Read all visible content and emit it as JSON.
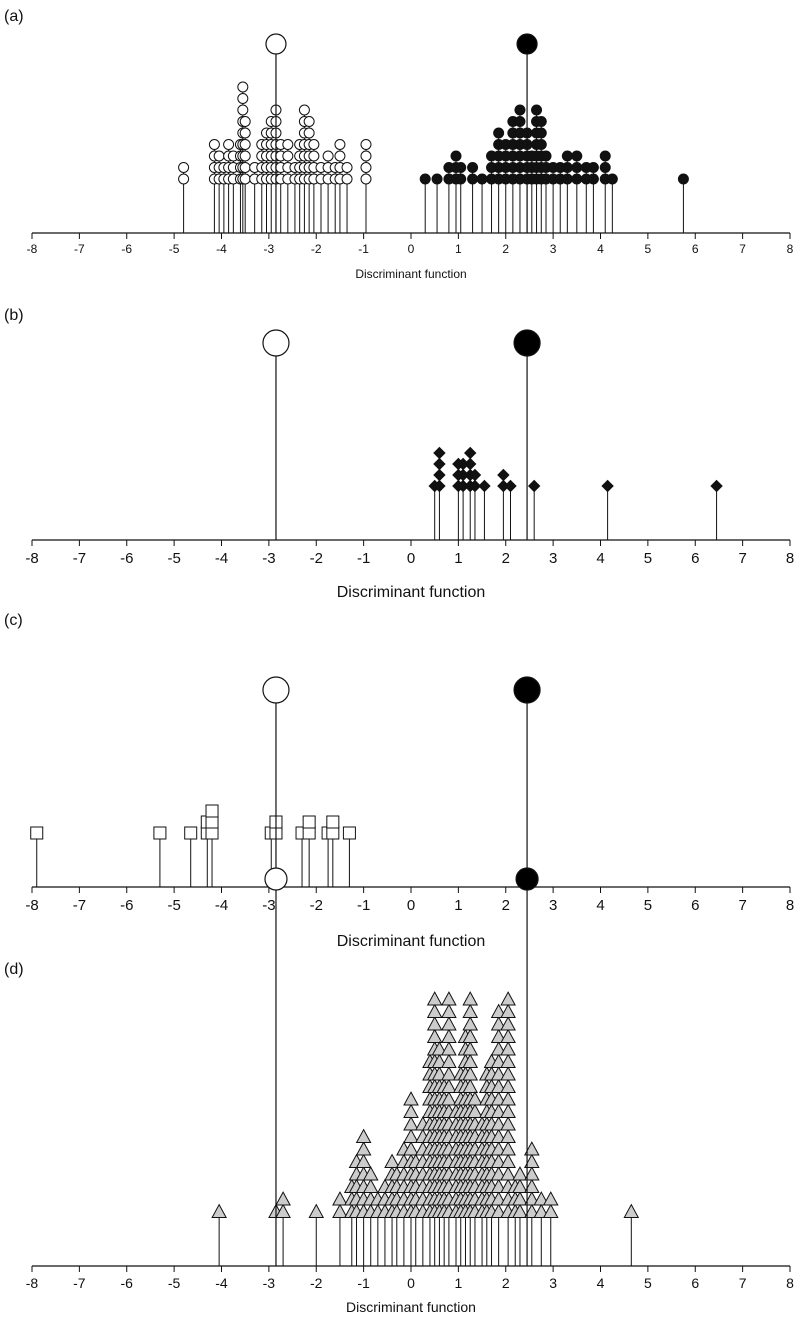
{
  "chart_data": [
    {
      "type": "scatter",
      "panel_label": "(a)",
      "xlabel": "Discriminant function",
      "xlim": [
        -8,
        8
      ],
      "x_ticks": [
        "-8",
        "-7",
        "-6",
        "-5",
        "-4",
        "-3",
        "-2",
        "-1",
        "0",
        "1",
        "2",
        "3",
        "4",
        "5",
        "6",
        "7",
        "8"
      ],
      "grid": false,
      "centroids": [
        {
          "x": -2.85,
          "fill": "#ffffff"
        },
        {
          "x": 2.45,
          "fill": "#000000"
        }
      ],
      "series": [
        {
          "marker": "circle",
          "fill": "#ffffff",
          "points": [
            {
              "x": -4.8,
              "count": 2
            },
            {
              "x": -4.15,
              "count": 4
            },
            {
              "x": -4.05,
              "count": 3
            },
            {
              "x": -3.95,
              "count": 2
            },
            {
              "x": -3.85,
              "count": 4
            },
            {
              "x": -3.75,
              "count": 3
            },
            {
              "x": -3.6,
              "count": 4
            },
            {
              "x": -3.55,
              "count": 9
            },
            {
              "x": -3.5,
              "count": 6
            },
            {
              "x": -3.3,
              "count": 2
            },
            {
              "x": -3.15,
              "count": 4
            },
            {
              "x": -3.05,
              "count": 5
            },
            {
              "x": -2.95,
              "count": 6
            },
            {
              "x": -2.85,
              "count": 7
            },
            {
              "x": -2.75,
              "count": 4
            },
            {
              "x": -2.6,
              "count": 4
            },
            {
              "x": -2.45,
              "count": 2
            },
            {
              "x": -2.35,
              "count": 4
            },
            {
              "x": -2.25,
              "count": 7
            },
            {
              "x": -2.15,
              "count": 6
            },
            {
              "x": -2.05,
              "count": 4
            },
            {
              "x": -1.9,
              "count": 2
            },
            {
              "x": -1.75,
              "count": 3
            },
            {
              "x": -1.6,
              "count": 2
            },
            {
              "x": -1.5,
              "count": 4
            },
            {
              "x": -1.35,
              "count": 2
            },
            {
              "x": -0.95,
              "count": 4
            }
          ]
        },
        {
          "marker": "circle",
          "fill": "#111111",
          "points": [
            {
              "x": 0.3,
              "count": 1
            },
            {
              "x": 0.55,
              "count": 1
            },
            {
              "x": 0.8,
              "count": 2
            },
            {
              "x": 0.95,
              "count": 3
            },
            {
              "x": 1.05,
              "count": 2
            },
            {
              "x": 1.3,
              "count": 2
            },
            {
              "x": 1.5,
              "count": 1
            },
            {
              "x": 1.7,
              "count": 3
            },
            {
              "x": 1.85,
              "count": 5
            },
            {
              "x": 2.0,
              "count": 4
            },
            {
              "x": 2.15,
              "count": 6
            },
            {
              "x": 2.3,
              "count": 7
            },
            {
              "x": 2.45,
              "count": 5
            },
            {
              "x": 2.55,
              "count": 3
            },
            {
              "x": 2.65,
              "count": 7
            },
            {
              "x": 2.75,
              "count": 6
            },
            {
              "x": 2.85,
              "count": 3
            },
            {
              "x": 3.0,
              "count": 2
            },
            {
              "x": 3.15,
              "count": 2
            },
            {
              "x": 3.3,
              "count": 3
            },
            {
              "x": 3.5,
              "count": 3
            },
            {
              "x": 3.7,
              "count": 2
            },
            {
              "x": 3.85,
              "count": 2
            },
            {
              "x": 4.1,
              "count": 3
            },
            {
              "x": 4.25,
              "count": 1
            },
            {
              "x": 5.75,
              "count": 1
            }
          ]
        }
      ]
    },
    {
      "type": "scatter",
      "panel_label": "(b)",
      "xlabel": "Discriminant function",
      "xlim": [
        -8,
        8
      ],
      "x_ticks": [
        "-8",
        "-7",
        "-6",
        "-5",
        "-4",
        "-3",
        "-2",
        "-1",
        "0",
        "1",
        "2",
        "3",
        "4",
        "5",
        "6",
        "7",
        "8"
      ],
      "grid": false,
      "centroids": [
        {
          "x": -2.85,
          "fill": "#ffffff"
        },
        {
          "x": 2.45,
          "fill": "#000000"
        }
      ],
      "series": [
        {
          "marker": "diamond",
          "fill": "#111111",
          "points": [
            {
              "x": 0.5,
              "count": 1
            },
            {
              "x": 0.6,
              "count": 4
            },
            {
              "x": 1.0,
              "count": 3
            },
            {
              "x": 1.1,
              "count": 3
            },
            {
              "x": 1.25,
              "count": 4
            },
            {
              "x": 1.35,
              "count": 2
            },
            {
              "x": 1.55,
              "count": 1
            },
            {
              "x": 1.95,
              "count": 2
            },
            {
              "x": 2.1,
              "count": 1
            },
            {
              "x": 2.6,
              "count": 1
            },
            {
              "x": 4.15,
              "count": 1
            },
            {
              "x": 6.45,
              "count": 1
            }
          ]
        }
      ]
    },
    {
      "type": "scatter",
      "panel_label": "(c)",
      "xlabel": "Discriminant function",
      "xlim": [
        -8,
        8
      ],
      "x_ticks": [
        "-8",
        "-7",
        "-6",
        "-5",
        "-4",
        "-3",
        "-2",
        "-1",
        "0",
        "1",
        "2",
        "3",
        "4",
        "5",
        "6",
        "7",
        "8"
      ],
      "grid": false,
      "centroids": [
        {
          "x": -2.85,
          "fill": "#ffffff"
        },
        {
          "x": 2.45,
          "fill": "#000000"
        }
      ],
      "series": [
        {
          "marker": "square",
          "fill": "#ffffff",
          "points": [
            {
              "x": -7.9,
              "count": 1
            },
            {
              "x": -5.3,
              "count": 1
            },
            {
              "x": -4.65,
              "count": 1
            },
            {
              "x": -4.3,
              "count": 2
            },
            {
              "x": -4.2,
              "count": 3
            },
            {
              "x": -2.95,
              "count": 1
            },
            {
              "x": -2.85,
              "count": 2
            },
            {
              "x": -2.3,
              "count": 1
            },
            {
              "x": -2.15,
              "count": 2
            },
            {
              "x": -1.75,
              "count": 1
            },
            {
              "x": -1.65,
              "count": 2
            },
            {
              "x": -1.3,
              "count": 1
            }
          ]
        }
      ]
    },
    {
      "type": "scatter",
      "panel_label": "(d)",
      "xlabel": "Discriminant function",
      "xlim": [
        -8,
        8
      ],
      "x_ticks": [
        "-8",
        "-7",
        "-6",
        "-5",
        "-4",
        "-3",
        "-2",
        "-1",
        "0",
        "1",
        "2",
        "3",
        "4",
        "5",
        "6",
        "7",
        "8"
      ],
      "grid": false,
      "centroids": [
        {
          "x": -2.85,
          "fill": "#ffffff"
        },
        {
          "x": 2.45,
          "fill": "#000000"
        }
      ],
      "series": [
        {
          "marker": "triangle",
          "fill": "#cccccc",
          "points": [
            {
              "x": -4.05,
              "count": 1
            },
            {
              "x": -2.85,
              "count": 1
            },
            {
              "x": -2.7,
              "count": 2
            },
            {
              "x": -2.0,
              "count": 1
            },
            {
              "x": -1.5,
              "count": 2
            },
            {
              "x": -1.25,
              "count": 3
            },
            {
              "x": -1.15,
              "count": 5
            },
            {
              "x": -1.0,
              "count": 7
            },
            {
              "x": -0.85,
              "count": 4
            },
            {
              "x": -0.7,
              "count": 2
            },
            {
              "x": -0.55,
              "count": 3
            },
            {
              "x": -0.4,
              "count": 5
            },
            {
              "x": -0.3,
              "count": 4
            },
            {
              "x": -0.15,
              "count": 6
            },
            {
              "x": 0.0,
              "count": 10
            },
            {
              "x": 0.1,
              "count": 5
            },
            {
              "x": 0.25,
              "count": 8
            },
            {
              "x": 0.4,
              "count": 13
            },
            {
              "x": 0.5,
              "count": 18
            },
            {
              "x": 0.6,
              "count": 14
            },
            {
              "x": 0.7,
              "count": 11
            },
            {
              "x": 0.8,
              "count": 18
            },
            {
              "x": 0.95,
              "count": 9
            },
            {
              "x": 1.05,
              "count": 12
            },
            {
              "x": 1.15,
              "count": 15
            },
            {
              "x": 1.25,
              "count": 18
            },
            {
              "x": 1.35,
              "count": 10
            },
            {
              "x": 1.5,
              "count": 8
            },
            {
              "x": 1.6,
              "count": 12
            },
            {
              "x": 1.7,
              "count": 13
            },
            {
              "x": 1.85,
              "count": 17
            },
            {
              "x": 2.05,
              "count": 18
            },
            {
              "x": 2.2,
              "count": 3
            },
            {
              "x": 2.3,
              "count": 4
            },
            {
              "x": 2.55,
              "count": 6
            },
            {
              "x": 2.75,
              "count": 2
            },
            {
              "x": 2.95,
              "count": 2
            },
            {
              "x": 4.65,
              "count": 1
            }
          ]
        }
      ]
    }
  ]
}
